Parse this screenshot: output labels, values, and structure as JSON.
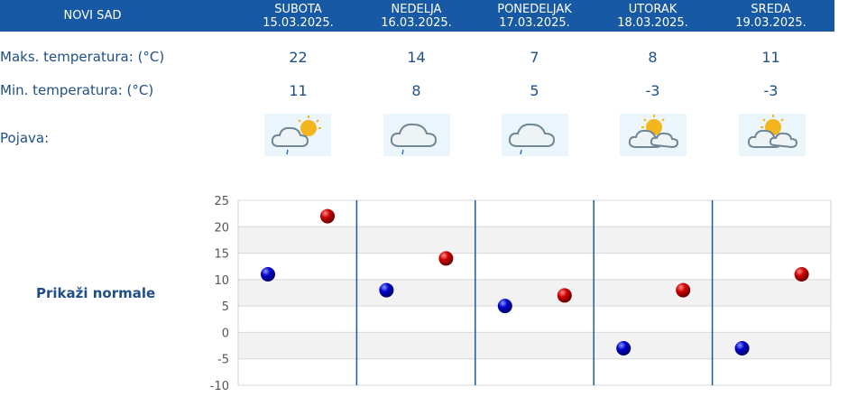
{
  "header": {
    "city": "NOVI SAD"
  },
  "days": [
    {
      "name": "SUBOTA",
      "date": "15.03.2025.",
      "max": "22",
      "min": "11",
      "icon": "partly-cloudy-rain-icon"
    },
    {
      "name": "NEDELJA",
      "date": "16.03.2025.",
      "max": "14",
      "min": "8",
      "icon": "cloud-rain-icon"
    },
    {
      "name": "PONEDELJAK",
      "date": "17.03.2025.",
      "max": "7",
      "min": "5",
      "icon": "cloud-rain-icon"
    },
    {
      "name": "UTORAK",
      "date": "18.03.2025.",
      "max": "8",
      "min": "-3",
      "icon": "partly-cloudy-icon"
    },
    {
      "name": "SREDA",
      "date": "19.03.2025.",
      "max": "11",
      "min": "-3",
      "icon": "partly-cloudy-icon"
    }
  ],
  "labels": {
    "max_temp": "Maks. temperatura: (°C)",
    "min_temp": "Min. temperatura: (°C)",
    "phenomenon": "Pojava:",
    "show_normals": "Prikaži normale"
  },
  "colors": {
    "header_bg": "#1759a5",
    "max_marker": "#cc0000",
    "min_marker": "#0000cc"
  },
  "chart_data": {
    "type": "scatter",
    "categories": [
      "15.03.2025.",
      "16.03.2025.",
      "17.03.2025.",
      "18.03.2025.",
      "19.03.2025."
    ],
    "series": [
      {
        "values": [
          11,
          8,
          5,
          -3,
          -3
        ]
      },
      {
        "values": [
          22,
          14,
          7,
          8,
          11
        ]
      }
    ],
    "yticks": [
      "25",
      "20",
      "15",
      "10",
      "5",
      "0",
      "-5",
      "-10"
    ],
    "ylim": [
      -10,
      25
    ],
    "grid": true
  }
}
